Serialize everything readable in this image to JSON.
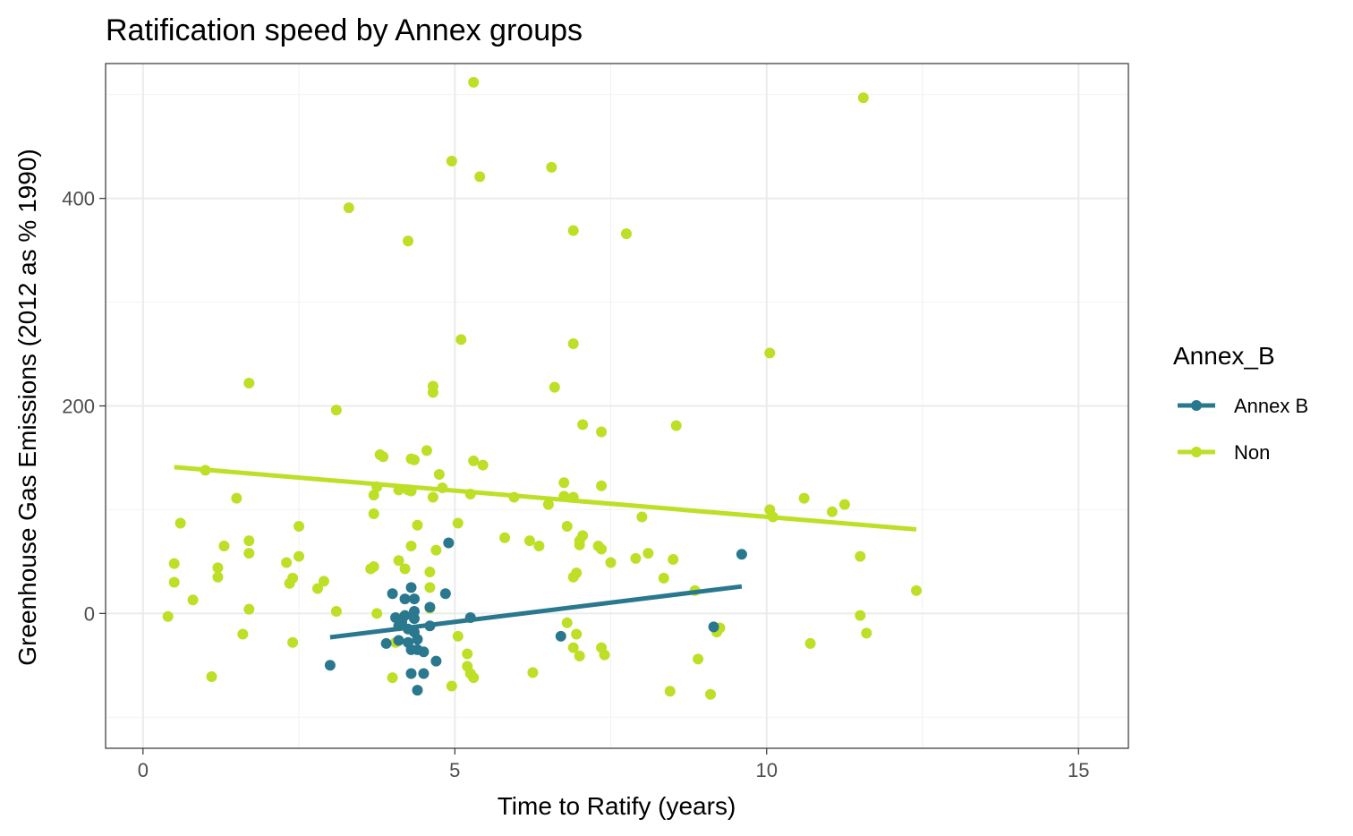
{
  "chart_data": {
    "type": "scatter",
    "title": "Ratification speed by Annex groups",
    "xlabel": "Time to Ratify (years)",
    "ylabel": "Greenhouse Gas Emissions (2012 as % 1990)",
    "xlim": [
      -0.6,
      15.8
    ],
    "ylim": [
      -130,
      530
    ],
    "x_ticks": [
      0,
      5,
      10,
      15
    ],
    "y_ticks": [
      0,
      200,
      400
    ],
    "grid": true,
    "legend": {
      "title": "Annex_B",
      "position": "right"
    },
    "series": [
      {
        "name": "Annex B",
        "color": "#2a788e",
        "points": [
          [
            3.0,
            -50
          ],
          [
            3.9,
            -29
          ],
          [
            4.0,
            19
          ],
          [
            4.05,
            -4
          ],
          [
            4.1,
            -12
          ],
          [
            4.1,
            -26
          ],
          [
            4.15,
            -8
          ],
          [
            4.2,
            14
          ],
          [
            4.2,
            -2
          ],
          [
            4.25,
            -15
          ],
          [
            4.25,
            -28
          ],
          [
            4.3,
            25
          ],
          [
            4.3,
            -35
          ],
          [
            4.3,
            -58
          ],
          [
            4.35,
            14
          ],
          [
            4.35,
            2
          ],
          [
            4.35,
            -5
          ],
          [
            4.35,
            -18
          ],
          [
            4.4,
            -25
          ],
          [
            4.4,
            -35
          ],
          [
            4.4,
            -74
          ],
          [
            4.5,
            -37
          ],
          [
            4.5,
            -58
          ],
          [
            4.6,
            6
          ],
          [
            4.6,
            -12
          ],
          [
            4.7,
            -46
          ],
          [
            4.85,
            19
          ],
          [
            4.9,
            68
          ],
          [
            5.25,
            -4
          ],
          [
            6.7,
            -22
          ],
          [
            9.15,
            -13
          ],
          [
            9.6,
            57
          ]
        ],
        "trend": [
          [
            3.0,
            -23
          ],
          [
            9.6,
            26
          ]
        ]
      },
      {
        "name": "Non",
        "color": "#bddf26",
        "points": [
          [
            0.4,
            -3
          ],
          [
            0.5,
            48
          ],
          [
            0.5,
            30
          ],
          [
            0.6,
            87
          ],
          [
            0.8,
            13
          ],
          [
            1.0,
            138
          ],
          [
            1.1,
            -61
          ],
          [
            1.2,
            44
          ],
          [
            1.2,
            35
          ],
          [
            1.3,
            65
          ],
          [
            1.5,
            111
          ],
          [
            1.6,
            -20
          ],
          [
            1.7,
            70
          ],
          [
            1.7,
            58
          ],
          [
            1.7,
            4
          ],
          [
            1.7,
            222
          ],
          [
            2.3,
            49
          ],
          [
            2.35,
            29
          ],
          [
            2.4,
            34
          ],
          [
            2.4,
            -28
          ],
          [
            2.5,
            84
          ],
          [
            2.5,
            55
          ],
          [
            2.8,
            24
          ],
          [
            2.9,
            31
          ],
          [
            3.1,
            196
          ],
          [
            3.1,
            2
          ],
          [
            3.3,
            391
          ],
          [
            3.65,
            43
          ],
          [
            3.7,
            45
          ],
          [
            3.7,
            96
          ],
          [
            3.7,
            114
          ],
          [
            3.75,
            122
          ],
          [
            3.75,
            0
          ],
          [
            3.8,
            153
          ],
          [
            3.85,
            151
          ],
          [
            4.0,
            -62
          ],
          [
            4.05,
            -28
          ],
          [
            4.1,
            119
          ],
          [
            4.1,
            51
          ],
          [
            4.2,
            43
          ],
          [
            4.25,
            359
          ],
          [
            4.25,
            119
          ],
          [
            4.3,
            118
          ],
          [
            4.3,
            65
          ],
          [
            4.3,
            149
          ],
          [
            4.35,
            148
          ],
          [
            4.4,
            85
          ],
          [
            4.55,
            157
          ],
          [
            4.6,
            5
          ],
          [
            4.6,
            40
          ],
          [
            4.6,
            25
          ],
          [
            4.65,
            219
          ],
          [
            4.65,
            213
          ],
          [
            4.65,
            112
          ],
          [
            4.7,
            61
          ],
          [
            4.75,
            134
          ],
          [
            4.8,
            121
          ],
          [
            4.95,
            -70
          ],
          [
            4.95,
            436
          ],
          [
            5.05,
            87
          ],
          [
            5.05,
            -22
          ],
          [
            5.1,
            264
          ],
          [
            5.2,
            -39
          ],
          [
            5.2,
            -51
          ],
          [
            5.25,
            -58
          ],
          [
            5.25,
            115
          ],
          [
            5.3,
            512
          ],
          [
            5.3,
            -62
          ],
          [
            5.3,
            147
          ],
          [
            5.4,
            421
          ],
          [
            5.45,
            143
          ],
          [
            5.8,
            73
          ],
          [
            5.95,
            112
          ],
          [
            6.2,
            70
          ],
          [
            6.25,
            -57
          ],
          [
            6.35,
            65
          ],
          [
            6.5,
            105
          ],
          [
            6.55,
            430
          ],
          [
            6.6,
            218
          ],
          [
            6.75,
            113
          ],
          [
            6.75,
            126
          ],
          [
            6.8,
            84
          ],
          [
            6.8,
            -9
          ],
          [
            6.9,
            112
          ],
          [
            6.9,
            35
          ],
          [
            6.9,
            -33
          ],
          [
            6.9,
            260
          ],
          [
            6.9,
            369
          ],
          [
            6.95,
            39
          ],
          [
            6.95,
            -20
          ],
          [
            7.0,
            70
          ],
          [
            7.0,
            66
          ],
          [
            7.0,
            -41
          ],
          [
            7.05,
            75
          ],
          [
            7.05,
            182
          ],
          [
            7.3,
            65
          ],
          [
            7.35,
            62
          ],
          [
            7.35,
            175
          ],
          [
            7.35,
            123
          ],
          [
            7.35,
            -33
          ],
          [
            7.4,
            -40
          ],
          [
            7.5,
            49
          ],
          [
            7.75,
            366
          ],
          [
            7.9,
            53
          ],
          [
            8.0,
            93
          ],
          [
            8.1,
            58
          ],
          [
            8.35,
            34
          ],
          [
            8.45,
            -75
          ],
          [
            8.5,
            52
          ],
          [
            8.55,
            181
          ],
          [
            8.85,
            22
          ],
          [
            8.9,
            -44
          ],
          [
            9.1,
            -78
          ],
          [
            9.2,
            -18
          ],
          [
            9.25,
            -14
          ],
          [
            10.05,
            251
          ],
          [
            10.05,
            100
          ],
          [
            10.1,
            93
          ],
          [
            10.6,
            111
          ],
          [
            10.7,
            -29
          ],
          [
            11.05,
            98
          ],
          [
            11.25,
            105
          ],
          [
            11.5,
            -2
          ],
          [
            11.5,
            55
          ],
          [
            11.55,
            497
          ],
          [
            11.6,
            -19
          ],
          [
            12.4,
            22
          ]
        ],
        "trend": [
          [
            0.5,
            141
          ],
          [
            12.4,
            81
          ]
        ]
      }
    ]
  }
}
